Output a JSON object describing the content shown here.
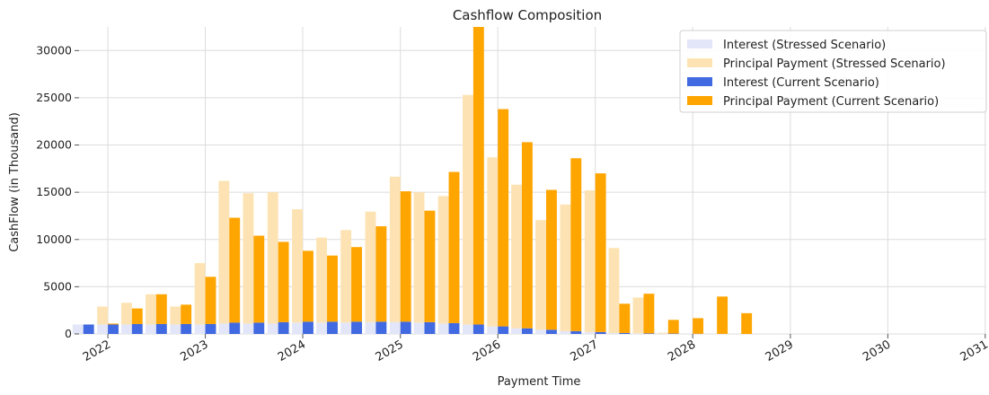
{
  "chart_data": {
    "type": "bar",
    "stacked": true,
    "title": "Cashflow Composition",
    "xlabel": "Payment Time",
    "ylabel": "CashFlow (in Thousand)",
    "ylim": [
      0,
      32500
    ],
    "yticks": [
      0,
      5000,
      10000,
      15000,
      20000,
      25000,
      30000
    ],
    "xlim": [
      "2021-09-15",
      "2031-01-05"
    ],
    "xticks": [
      "2022",
      "2023",
      "2024",
      "2025",
      "2026",
      "2027",
      "2028",
      "2029",
      "2030",
      "2031"
    ],
    "grid": true,
    "legend_position": "top-right",
    "colors": {
      "interest_stressed": "#e3e6f8",
      "principal_stressed": "#fde3b3",
      "interest_current": "#4169e1",
      "principal_current": "#ffa500"
    },
    "series": [
      {
        "name": "Interest (Stressed Scenario)",
        "group": "stressed",
        "component": "interest",
        "x": [
          "2021-10-01",
          "2022-01-01",
          "2022-04-01",
          "2022-07-01",
          "2022-10-01",
          "2023-01-01",
          "2023-04-01",
          "2023-07-01",
          "2023-10-01",
          "2024-01-01",
          "2024-04-01",
          "2024-07-01",
          "2024-10-01",
          "2025-01-01",
          "2025-04-01",
          "2025-07-01",
          "2025-10-01",
          "2026-01-01",
          "2026-04-01",
          "2026-07-01",
          "2026-10-01",
          "2027-01-01",
          "2027-04-01",
          "2027-07-01",
          "2027-10-01",
          "2028-01-01",
          "2028-04-01",
          "2028-07-01"
        ],
        "values": [
          1000,
          1000,
          1000,
          1000,
          1000,
          1000,
          1100,
          1100,
          1100,
          1200,
          1200,
          1200,
          1250,
          1250,
          1200,
          1100,
          1000,
          800,
          600,
          450,
          300,
          200,
          100,
          60,
          30,
          10,
          0,
          0
        ]
      },
      {
        "name": "Principal Payment (Stressed Scenario)",
        "group": "stressed",
        "component": "principal",
        "x": [
          "2021-10-01",
          "2022-01-01",
          "2022-04-01",
          "2022-07-01",
          "2022-10-01",
          "2023-01-01",
          "2023-04-01",
          "2023-07-01",
          "2023-10-01",
          "2024-01-01",
          "2024-04-01",
          "2024-07-01",
          "2024-10-01",
          "2025-01-01",
          "2025-04-01",
          "2025-07-01",
          "2025-10-01",
          "2026-01-01",
          "2026-04-01",
          "2026-07-01",
          "2026-10-01",
          "2027-01-01",
          "2027-04-01",
          "2027-07-01",
          "2027-10-01",
          "2028-01-01",
          "2028-04-01",
          "2028-07-01"
        ],
        "values": [
          0,
          1900,
          2300,
          3200,
          1900,
          6500,
          15100,
          13800,
          13900,
          12000,
          9000,
          9800,
          11700,
          15400,
          13800,
          13500,
          24300,
          17900,
          15200,
          11600,
          13400,
          15000,
          9000,
          3800,
          100,
          0,
          0,
          0
        ]
      },
      {
        "name": "Interest (Current Scenario)",
        "group": "current",
        "component": "interest",
        "x": [
          "2021-10-01",
          "2022-01-01",
          "2022-04-01",
          "2022-07-01",
          "2022-10-01",
          "2023-01-01",
          "2023-04-01",
          "2023-07-01",
          "2023-10-01",
          "2024-01-01",
          "2024-04-01",
          "2024-07-01",
          "2024-10-01",
          "2025-01-01",
          "2025-04-01",
          "2025-07-01",
          "2025-10-01",
          "2026-01-01",
          "2026-04-01",
          "2026-07-01",
          "2026-10-01",
          "2027-01-01",
          "2027-04-01",
          "2027-07-01",
          "2027-10-01",
          "2028-01-01",
          "2028-04-01",
          "2028-07-01"
        ],
        "values": [
          1000,
          1000,
          1050,
          1050,
          1050,
          1050,
          1200,
          1200,
          1250,
          1300,
          1300,
          1300,
          1300,
          1300,
          1250,
          1150,
          1000,
          800,
          600,
          450,
          300,
          200,
          100,
          60,
          40,
          20,
          10,
          0
        ]
      },
      {
        "name": "Principal Payment (Current Scenario)",
        "group": "current",
        "component": "principal",
        "x": [
          "2021-10-01",
          "2022-01-01",
          "2022-04-01",
          "2022-07-01",
          "2022-10-01",
          "2023-01-01",
          "2023-04-01",
          "2023-07-01",
          "2023-10-01",
          "2024-01-01",
          "2024-04-01",
          "2024-07-01",
          "2024-10-01",
          "2025-01-01",
          "2025-04-01",
          "2025-07-01",
          "2025-10-01",
          "2026-01-01",
          "2026-04-01",
          "2026-07-01",
          "2026-10-01",
          "2027-01-01",
          "2027-04-01",
          "2027-07-01",
          "2027-10-01",
          "2028-01-01",
          "2028-04-01",
          "2028-07-01"
        ],
        "values": [
          0,
          100,
          1650,
          3150,
          2050,
          5000,
          11100,
          9200,
          8500,
          7500,
          7000,
          7900,
          10100,
          13800,
          11800,
          16000,
          31500,
          23000,
          19700,
          14800,
          18300,
          16800,
          3100,
          4200,
          1450,
          1650,
          3950,
          2200
        ]
      }
    ]
  }
}
